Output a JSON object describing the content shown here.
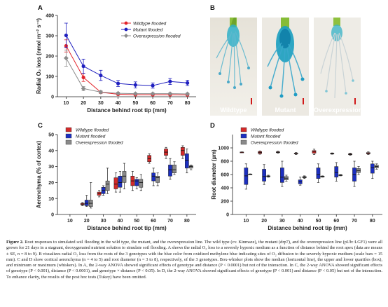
{
  "figure": {
    "panels": {
      "a": {
        "letter": "A"
      },
      "b": {
        "letter": "B"
      },
      "c": {
        "letter": "C"
      },
      "d": {
        "letter": "D"
      }
    }
  },
  "photos": [
    {
      "label": "Wildtype"
    },
    {
      "label": "Mutant"
    },
    {
      "label": "Overexpression"
    }
  ],
  "chart_data": [
    {
      "panel": "A",
      "type": "line",
      "ylabel": "Radial O₂ loss (nmol m⁻² s⁻¹)",
      "xlabel": "Distance behind root tip (mm)",
      "x": [
        10,
        20,
        30,
        40,
        50,
        60,
        70,
        80
      ],
      "xlim": [
        5,
        85
      ],
      "ylim": [
        0,
        400
      ],
      "yticks": [
        0,
        100,
        200,
        300,
        400
      ],
      "legend_position": "top-right",
      "series": [
        {
          "name": "Wildtype flooded",
          "color": "#e3242b",
          "marker": "circle",
          "values": [
            250,
            95,
            22,
            12,
            10,
            10,
            10,
            9
          ],
          "errors": [
            30,
            20,
            6,
            4,
            3,
            3,
            3,
            3
          ]
        },
        {
          "name": "Mutant flooded",
          "color": "#1f1fbf",
          "marker": "circle",
          "values": [
            302,
            150,
            105,
            65,
            58,
            55,
            75,
            68
          ],
          "errors": [
            60,
            35,
            25,
            15,
            15,
            13,
            15,
            13
          ]
        },
        {
          "name": "Overexpression flooded",
          "color": "#8c8c8c",
          "marker": "diamond",
          "values": [
            190,
            40,
            23,
            17,
            15,
            15,
            15,
            14
          ],
          "errors": [
            40,
            10,
            6,
            5,
            4,
            4,
            4,
            4
          ]
        }
      ]
    },
    {
      "panel": "C",
      "type": "box",
      "ylabel": "Aerenchyma (% of cortex)",
      "xlabel": "Distance behind root tip (mm)",
      "categories": [
        "10",
        "20",
        "30",
        "40",
        "50",
        "60",
        "70",
        "80"
      ],
      "ylim": [
        0,
        50
      ],
      "yticks": [
        0,
        10,
        20,
        30,
        40,
        50
      ],
      "legend_position": "top-left",
      "series": [
        {
          "name": "Wildtype flooded",
          "color": "#d42a2a",
          "boxes": [
            null,
            [
              5.5,
              6,
              6.5,
              7,
              7.5
            ],
            [
              11,
              12,
              13,
              14,
              15
            ],
            [
              14,
              16,
              19,
              23,
              26
            ],
            [
              15,
              18,
              21,
              24,
              27
            ],
            [
              32,
              33,
              35,
              37,
              38
            ],
            [
              35,
              37,
              39,
              41,
              42
            ],
            [
              35,
              37,
              40,
              42,
              43
            ]
          ]
        },
        {
          "name": "Mutant flooded",
          "color": "#1c2fc0",
          "boxes": [
            null,
            [
              5,
              5.5,
              7,
              9,
              12
            ],
            [
              12,
              13,
              15,
              17,
              18
            ],
            [
              14,
              17,
              20,
              24,
              27
            ],
            [
              16,
              18,
              21,
              22,
              23
            ],
            [
              18,
              21,
              24,
              26,
              29
            ],
            [
              22,
              24,
              28,
              31,
              35
            ],
            [
              26,
              29,
              34,
              38,
              41
            ]
          ]
        },
        {
          "name": "Overexpression flooded",
          "color": "#8a8a8a",
          "boxes": [
            null,
            [
              4,
              5,
              7,
              9,
              20
            ],
            [
              13,
              15,
              19,
              21,
              29
            ],
            [
              16,
              20,
              24,
              27,
              32
            ],
            [
              15,
              17,
              20,
              22,
              25
            ],
            [
              18,
              20,
              23,
              24,
              26
            ],
            [
              25,
              26,
              28,
              31,
              33
            ],
            [
              28,
              29,
              30,
              30.5,
              31
            ]
          ]
        }
      ]
    },
    {
      "panel": "D",
      "type": "box",
      "ylabel": "Root diameter (µm)",
      "xlabel": "Distance behind root tip (mm)",
      "categories": [
        "10",
        "20",
        "30",
        "40",
        "50",
        "60",
        "70",
        "80"
      ],
      "ylim": [
        0,
        1200
      ],
      "yticks": [
        0,
        200,
        400,
        600,
        800,
        1000
      ],
      "legend_position": "top-left",
      "series": [
        {
          "name": "Wildtype flooded",
          "color": "#d42a2a",
          "boxes": [
            [
              930,
              932,
              935,
              938,
              940
            ],
            [
              905,
              915,
              930,
              945,
              955
            ],
            [
              920,
              928,
              935,
              942,
              950
            ],
            [
              900,
              910,
              915,
              922,
              930
            ],
            [
              900,
              920,
              940,
              960,
              980
            ],
            [
              905,
              910,
              915,
              920,
              925
            ],
            [
              890,
              897,
              905,
              912,
              920
            ],
            [
              900,
              910,
              920,
              930,
              940
            ]
          ]
        },
        {
          "name": "Mutant flooded",
          "color": "#1c2fc0",
          "boxes": [
            [
              380,
              450,
              580,
              700,
              760
            ],
            [
              450,
              500,
              570,
              680,
              750
            ],
            [
              420,
              480,
              560,
              700,
              800
            ],
            [
              440,
              460,
              490,
              520,
              560
            ],
            [
              480,
              540,
              600,
              700,
              760
            ],
            [
              500,
              560,
              630,
              720,
              780
            ],
            [
              420,
              500,
              600,
              700,
              800
            ],
            [
              540,
              620,
              700,
              760,
              800
            ]
          ]
        },
        {
          "name": "Overexpression flooded",
          "color": "#8a8a8a",
          "boxes": [
            [
              600,
              602,
              605,
              608,
              610
            ],
            [
              560,
              568,
              575,
              580,
              590
            ],
            [
              500,
              520,
              545,
              570,
              590
            ],
            [
              540,
              550,
              560,
              570,
              580
            ],
            [
              560,
              564,
              570,
              575,
              580
            ],
            [
              580,
              586,
              590,
              596,
              600
            ],
            [
              600,
              630,
              660,
              690,
              720
            ],
            [
              680,
              700,
              720,
              740,
              760
            ]
          ]
        }
      ]
    }
  ],
  "caption": {
    "label": "Figure 2.",
    "text": "Root responses to simulated soil flooding in the wild type, the mutant, and the overexpression line. The wild type (cv. Kinmaze), the mutant (drp7), and the overexpression line (pUb::LGF1) were all grown for 21 days in a stagnant, deoxygenated nutrient solution to simulate soil flooding. A shows the radial O₂ loss to a severely hypoxic medium as a function of distance behind the root apex (data are means ± SE, n = 8 to 9). B visualizes radial O₂ loss from the roots of the 3 genotypes with the blue color from oxidized methylene blue indicating sites of O₂ diffusion to the severely hypoxic medium (scale bars = 15 mm). C and D show cortical aerenchyma (n = 4 to 5) and root diameter (n = 3 to 8), respectively, of the 3 genotypes. Box-whisker plots show the median (horizontal line), the upper and lower quartiles (box), and minimum or maximum (whiskers). In A, the 2-way ANOVA showed significant effects of genotype and distance (P < 0.0001) but not of the interaction. In C, the 2-way ANOVA showed significant effects of genotype (P < 0.001), distance (P < 0.0001), and genotype × distance (P < 0.05). In D, the 2-way ANOVA showed significant effects of genotype (P < 0.001) and distance (P < 0.05) but not of the interaction. To enhance clarity, the results of the post hoc tests (Tukey) have been omitted."
  }
}
